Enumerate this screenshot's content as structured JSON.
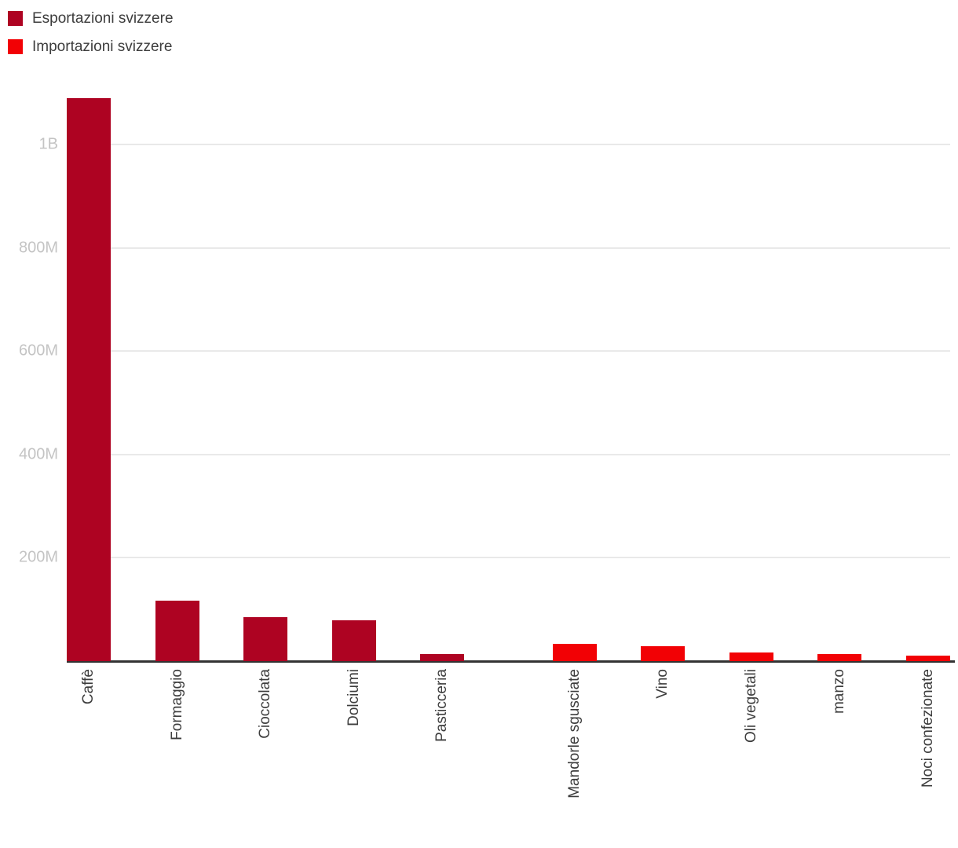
{
  "legend": {
    "items": [
      {
        "label": "Esportazioni svizzere",
        "color": "#ae0322"
      },
      {
        "label": "Importazioni svizzere",
        "color": "#f20105"
      }
    ]
  },
  "chart_data": {
    "type": "bar",
    "title": "",
    "categories": [
      "Caffè",
      "Formaggio",
      "Cioccolata",
      "Dolciumi",
      "Pasticceria",
      "Mandorle sgusciate",
      "Vino",
      "Oli vegetali",
      "manzo",
      "Noci confezionate"
    ],
    "series": [
      {
        "name": "Esportazioni svizzere",
        "color": "#ae0322",
        "values": [
          1090000000,
          117000000,
          85000000,
          79000000,
          14000000,
          null,
          null,
          null,
          null,
          null
        ]
      },
      {
        "name": "Importazioni svizzere",
        "color": "#f20105",
        "values": [
          null,
          null,
          null,
          null,
          null,
          33000000,
          29000000,
          16000000,
          13000000,
          11000000
        ]
      }
    ],
    "yticks": [
      {
        "value": 1000000000,
        "label": "1B"
      },
      {
        "value": 800000000,
        "label": "800M"
      },
      {
        "value": 600000000,
        "label": "600M"
      },
      {
        "value": 400000000,
        "label": "400M"
      },
      {
        "value": 200000000,
        "label": "200M"
      }
    ],
    "ylim": [
      0,
      1150000000
    ],
    "grid": true,
    "legend_position": "top-left",
    "x_label_rotation": -90,
    "group_gap_after_index": 4
  }
}
